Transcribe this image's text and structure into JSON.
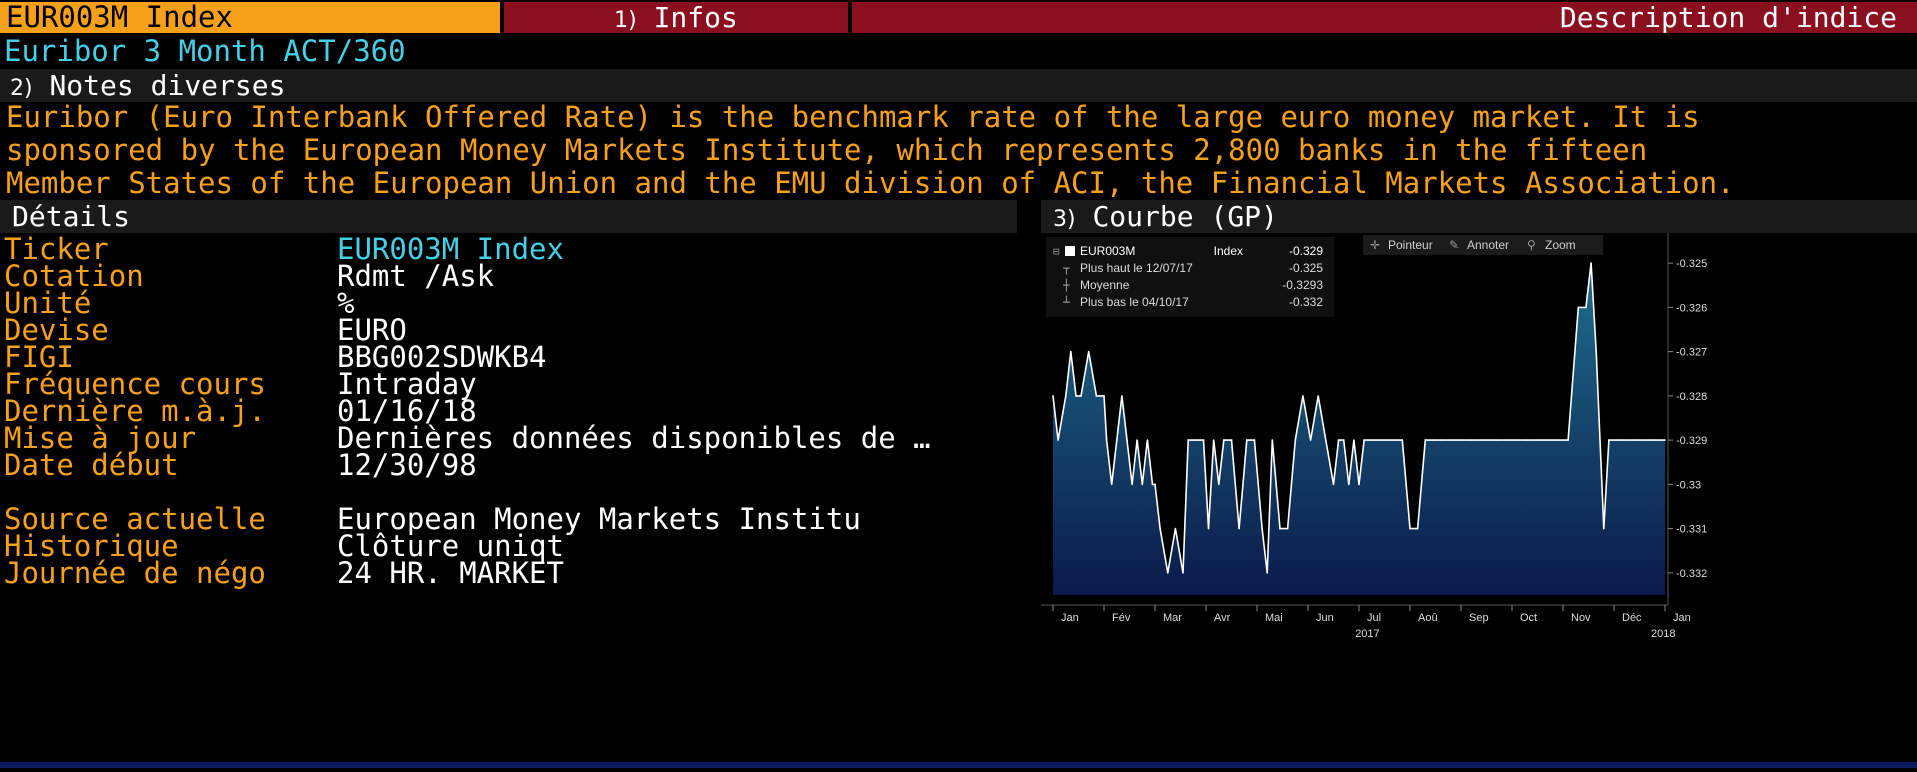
{
  "header": {
    "ticker_tab": "EUR003M Index",
    "infos_num": "1)",
    "infos_label": "Infos",
    "description_label": "Description d'indice"
  },
  "subtitle": "Euribor 3 Month ACT/360",
  "notes": {
    "num": "2)",
    "title": "Notes diverses",
    "lines": [
      "Euribor (Euro Interbank Offered Rate) is the benchmark rate of the large euro money market. It is",
      "sponsored by the European Money Markets Institute, which represents 2,800 banks in the fifteen",
      "Member States of the European Union and the EMU division of ACI, the Financial Markets Association."
    ]
  },
  "details": {
    "title": "Détails",
    "rows": [
      {
        "label": "Ticker",
        "value": "EUR003M  Index"
      },
      {
        "label": "Cotation",
        "value": "Rdmt /Ask"
      },
      {
        "label": "Unité",
        "value": "%"
      },
      {
        "label": "Devise",
        "value": "EURO"
      },
      {
        "label": "FIGI",
        "value": "BBG002SDWKB4"
      },
      {
        "label": "Fréquence cours",
        "value": "Intraday"
      },
      {
        "label": "Dernière m.à.j.",
        "value": "01/16/18"
      },
      {
        "label": "Mise à jour",
        "value": "Dernières données disponibles de …"
      },
      {
        "label": "Date début",
        "value": "12/30/98"
      },
      {
        "label": "",
        "value": ""
      },
      {
        "label": "Source actuelle",
        "value": "European Money Markets Institu"
      },
      {
        "label": "Historique",
        "value": "Clôture uniqt"
      },
      {
        "label": "Journée de négo",
        "value": "24 HR. MARKET"
      }
    ]
  },
  "chart": {
    "num": "3)",
    "title": "Courbe (GP)",
    "toolbar": {
      "pointer": "Pointeur",
      "annotate": "Annoter",
      "zoom": "Zoom"
    },
    "legend": {
      "series": "EUR003M",
      "index_label": "Index",
      "last": "-0.329",
      "high_label": "Plus haut le 12/07/17",
      "high": "-0.325",
      "avg_label": "Moyenne",
      "avg": "-0.3293",
      "low_label": "Plus bas le 04/10/17",
      "low": "-0.332"
    },
    "colors": {
      "fill_top": "#1f6e8c",
      "fill_bottom": "#0a1a4a",
      "line": "#ffffff"
    }
  },
  "chart_data": {
    "type": "area",
    "title": "",
    "xlabel": "",
    "ylabel": "",
    "ylim": [
      -0.3325,
      -0.3245
    ],
    "yticks": [
      -0.325,
      -0.326,
      -0.327,
      -0.328,
      -0.329,
      -0.33,
      -0.331,
      -0.332
    ],
    "ytick_labels": [
      "-0.325",
      "-0.326",
      "-0.327",
      "-0.328",
      "-0.329",
      "-0.33",
      "-0.331",
      "-0.332"
    ],
    "month_labels": [
      "Jan",
      "Fév",
      "Mar",
      "Avr",
      "Mai",
      "Jun",
      "Jul",
      "Aoû",
      "Sep",
      "Oct",
      "Nov",
      "Déc",
      "Jan"
    ],
    "year_labels": [
      "2017",
      "2018"
    ],
    "series": [
      {
        "name": "EUR003M",
        "x": [
          0.0,
          0.1,
          0.25,
          0.35,
          0.45,
          0.55,
          0.7,
          0.85,
          1.0,
          1.05,
          1.15,
          1.25,
          1.35,
          1.45,
          1.55,
          1.65,
          1.75,
          1.85,
          1.95,
          2.0,
          2.1,
          2.25,
          2.4,
          2.55,
          2.65,
          2.75,
          2.85,
          2.95,
          3.0,
          3.05,
          3.15,
          3.25,
          3.35,
          3.5,
          3.65,
          3.8,
          3.95,
          4.1,
          4.2,
          4.3,
          4.45,
          4.6,
          4.75,
          4.9,
          5.05,
          5.2,
          5.35,
          5.5,
          5.6,
          5.7,
          5.8,
          5.9,
          6.0,
          6.1,
          6.25,
          6.4,
          6.55,
          6.7,
          6.85,
          7.0,
          7.15,
          7.3,
          7.45,
          7.6,
          7.8,
          8.0,
          8.2,
          8.4,
          8.55,
          8.7,
          8.9,
          9.1,
          9.3,
          9.5,
          9.7,
          9.9,
          10.1,
          10.3,
          10.45,
          10.55,
          10.65,
          10.8,
          10.9,
          11.1,
          11.4,
          11.7,
          12.0
        ],
        "y": [
          -0.328,
          -0.329,
          -0.328,
          -0.327,
          -0.328,
          -0.328,
          -0.327,
          -0.328,
          -0.328,
          -0.329,
          -0.33,
          -0.329,
          -0.328,
          -0.329,
          -0.33,
          -0.329,
          -0.33,
          -0.329,
          -0.33,
          -0.33,
          -0.331,
          -0.332,
          -0.331,
          -0.332,
          -0.329,
          -0.329,
          -0.329,
          -0.329,
          -0.33,
          -0.331,
          -0.329,
          -0.33,
          -0.329,
          -0.329,
          -0.331,
          -0.329,
          -0.329,
          -0.331,
          -0.332,
          -0.329,
          -0.331,
          -0.331,
          -0.329,
          -0.328,
          -0.329,
          -0.328,
          -0.329,
          -0.33,
          -0.329,
          -0.329,
          -0.33,
          -0.329,
          -0.33,
          -0.329,
          -0.329,
          -0.329,
          -0.329,
          -0.329,
          -0.329,
          -0.331,
          -0.331,
          -0.329,
          -0.329,
          -0.329,
          -0.329,
          -0.329,
          -0.329,
          -0.329,
          -0.329,
          -0.329,
          -0.329,
          -0.329,
          -0.329,
          -0.329,
          -0.329,
          -0.329,
          -0.329,
          -0.326,
          -0.326,
          -0.325,
          -0.327,
          -0.331,
          -0.329,
          -0.329,
          -0.329,
          -0.329,
          -0.329
        ]
      }
    ],
    "legend_position": "top-left",
    "grid": false
  }
}
